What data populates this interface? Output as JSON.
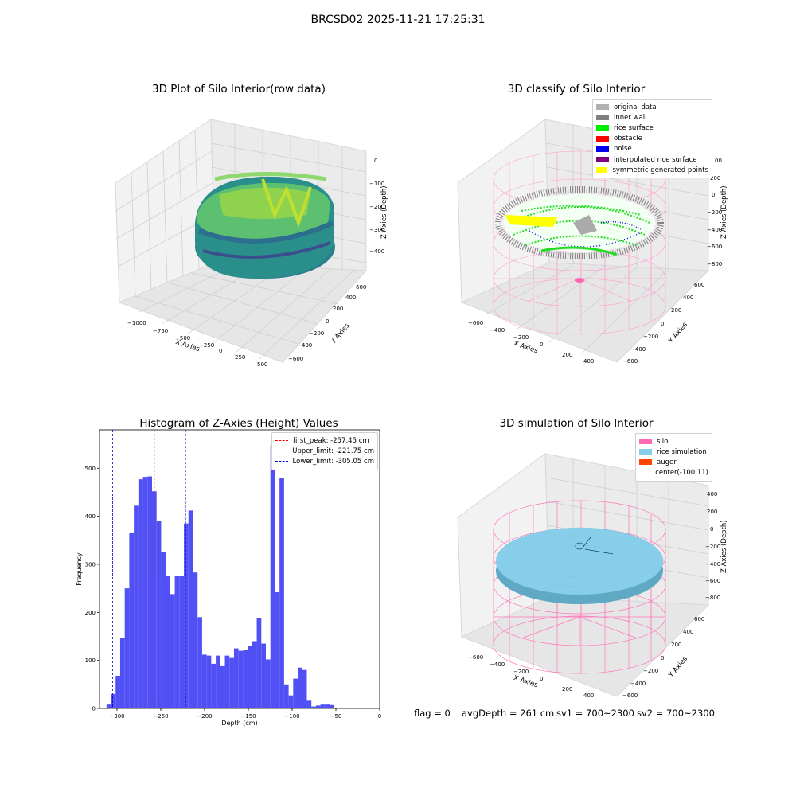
{
  "figure": {
    "title": "BRCSD02 2025-11-21 17:25:31"
  },
  "panel_raw": {
    "title": "3D Plot of Silo Interior(row data)",
    "xlabel": "X Axies",
    "ylabel": "Y Axies",
    "zlabel": "Z Axies (Depth)",
    "xticks": [
      "−1000",
      "−750",
      "−500",
      "−250",
      "0",
      "250",
      "500"
    ],
    "yticks": [
      "−600",
      "−400",
      "−200",
      "0",
      "200",
      "400",
      "600"
    ],
    "zticks": [
      "0",
      "−100",
      "−200",
      "−300",
      "−400"
    ]
  },
  "panel_classify": {
    "title": "3D classify of Silo Interior",
    "xlabel": "X Axies",
    "ylabel": "Y Axies",
    "zlabel": "Z Axies (Depth)",
    "xticks": [
      "−600",
      "−400",
      "−200",
      "0",
      "200",
      "400"
    ],
    "yticks": [
      "−600",
      "−400",
      "−200",
      "0",
      "200",
      "400",
      "600"
    ],
    "zticks": [
      "200",
      "0",
      "−200",
      "−400",
      "−600",
      "−800"
    ],
    "ztick_top_partial": "00",
    "legend": [
      {
        "label": "original data",
        "color": "#b0b0b0"
      },
      {
        "label": "inner wall",
        "color": "#808080"
      },
      {
        "label": "rice surface",
        "color": "#00ee00"
      },
      {
        "label": "obstacle",
        "color": "#ff0000"
      },
      {
        "label": "noise",
        "color": "#0000ee"
      },
      {
        "label": "interpolated rice surface",
        "color": "#800080"
      },
      {
        "label": "symmetric generated points",
        "color": "#ffff00"
      }
    ]
  },
  "panel_sim": {
    "title": "3D simulation of Silo Interior",
    "xlabel": "X Axies",
    "ylabel": "Y Axies",
    "zlabel": "Z Axies (Depth)",
    "xticks": [
      "−600",
      "−400",
      "−200",
      "0",
      "200",
      "400"
    ],
    "yticks": [
      "−600",
      "−400",
      "−200",
      "0",
      "200",
      "400",
      "600"
    ],
    "zticks": [
      "400",
      "200",
      "0",
      "−200",
      "−400",
      "−600",
      "−800"
    ],
    "legend": [
      {
        "label": "silo",
        "color": "#ff69b4"
      },
      {
        "label": "rice simulation",
        "color": "#87ceeb"
      },
      {
        "label": "auger",
        "color": "#ff4500"
      },
      {
        "label": "center(-100,11)",
        "color": ""
      }
    ]
  },
  "status": {
    "flag": "flag = 0",
    "avg": "avgDepth = 261 cm",
    "sv1": "sv1 = 700~2300",
    "sv2": "sv2 = 700~2300"
  },
  "chart_data": [
    {
      "type": "bar",
      "title": "Histogram of Z-Axies (Height) Values",
      "xlabel": "Depth (cm)",
      "ylabel": "Frequency",
      "xlim": [
        -320,
        0
      ],
      "ylim": [
        0,
        580
      ],
      "xticks": [
        -300,
        -250,
        -200,
        -150,
        -100,
        -50,
        0
      ],
      "xtick_labels": [
        "−300",
        "−250",
        "−200",
        "−150",
        "−100",
        "−50",
        "0"
      ],
      "yticks": [
        0,
        100,
        200,
        300,
        400,
        500
      ],
      "bar_color": "#5050f5",
      "bin_start": -312,
      "bin_width": 5.2,
      "values": [
        8,
        30,
        68,
        147,
        250,
        365,
        422,
        477,
        482,
        483,
        452,
        390,
        325,
        275,
        238,
        275,
        276,
        385,
        412,
        283,
        190,
        112,
        110,
        93,
        110,
        88,
        110,
        105,
        125,
        120,
        122,
        130,
        140,
        188,
        135,
        102,
        548,
        242,
        480,
        50,
        27,
        62,
        85,
        80,
        16,
        4,
        6,
        8,
        8,
        7
      ],
      "vlines": [
        {
          "label": "first_peak: -257.45 cm",
          "x": -257.45,
          "color": "#ff0000"
        },
        {
          "label": "Upper_limit: -221.75 cm",
          "x": -221.75,
          "color": "#0000cc"
        },
        {
          "label": "Lower_limit: -305.05 cm",
          "x": -305.05,
          "color": "#0000cc"
        }
      ]
    }
  ]
}
